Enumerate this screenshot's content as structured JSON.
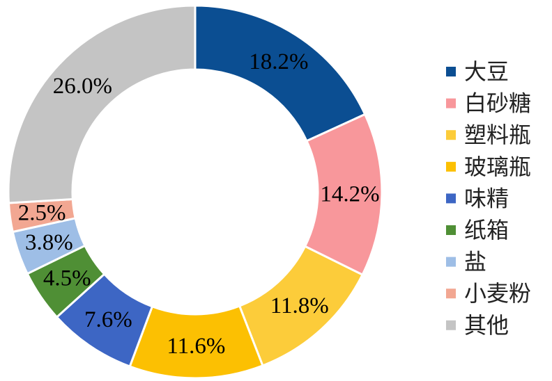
{
  "chart_data": {
    "type": "pie",
    "variant": "donut",
    "title": "",
    "categories": [
      "大豆",
      "白砂糖",
      "塑料瓶",
      "玻璃瓶",
      "味精",
      "纸箱",
      "盐",
      "小麦粉",
      "其他"
    ],
    "values": [
      18.2,
      14.2,
      11.8,
      11.6,
      7.6,
      4.5,
      3.8,
      2.5,
      26.0
    ],
    "data_labels": [
      "18.2%",
      "14.2%",
      "11.8%",
      "11.6%",
      "7.6%",
      "4.5%",
      "3.8%",
      "2.5%",
      "26.0%"
    ],
    "colors": [
      "#0b4e92",
      "#f8979b",
      "#fccc3a",
      "#fcc002",
      "#3d66c4",
      "#4f8f35",
      "#9ebee6",
      "#f2a792",
      "#c4c4c4"
    ],
    "legend_position": "right",
    "start_angle": "12 o'clock, clockwise"
  }
}
